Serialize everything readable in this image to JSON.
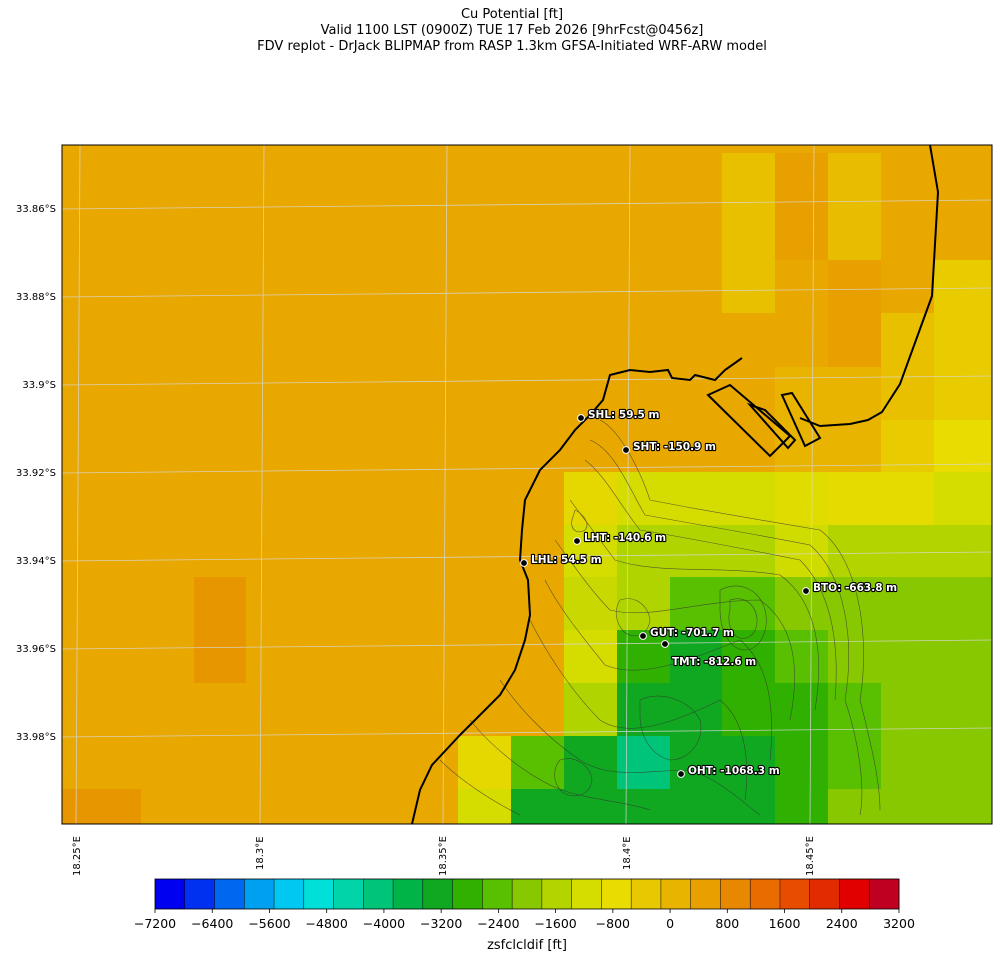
{
  "header": {
    "line1": "Cu Potential [ft]",
    "line2": "Valid 1100 LST (0900Z) TUE 17 Feb 2026 [9hrFcst@0456z]",
    "line3": "FDV replot - DrJack BLIPMAP from RASP 1.3km GFSA-Initiated WRF-ARW model"
  },
  "map": {
    "lat_ticks": [
      "33.86°S",
      "33.88°S",
      "33.9°S",
      "33.92°S",
      "33.94°S",
      "33.96°S",
      "33.98°S"
    ],
    "lon_ticks": [
      "18.25°E",
      "18.3°E",
      "18.35°E",
      "18.4°E",
      "18.45°E"
    ],
    "stations": [
      {
        "code": "SHL",
        "label": "SHL: 59.5 m"
      },
      {
        "code": "SHT",
        "label": "SHT: -150.9 m"
      },
      {
        "code": "LHT",
        "label": "LHT: -140.6 m"
      },
      {
        "code": "LHL",
        "label": "LHL: 54.5 m"
      },
      {
        "code": "BTO",
        "label": "BTO: -663.8 m"
      },
      {
        "code": "GUT",
        "label": "GUT: -701.7 m"
      },
      {
        "code": "TMT",
        "label": "TMT: -812.6 m"
      },
      {
        "code": "OHT",
        "label": "OHT: -1068.3 m"
      }
    ]
  },
  "colorbar": {
    "label": "zsfclcldif [ft]",
    "ticks": [
      "−7200",
      "−6400",
      "−5600",
      "−4800",
      "−4000",
      "−3200",
      "−2400",
      "−1600",
      "−800",
      "0",
      "800",
      "1600",
      "2400",
      "3200"
    ],
    "colors": [
      "#0000f0",
      "#0030f0",
      "#0068f0",
      "#00a0f0",
      "#00c8f0",
      "#00e0d8",
      "#00d4a8",
      "#00c478",
      "#00b448",
      "#10a820",
      "#30b000",
      "#58c000",
      "#88c800",
      "#b4d400",
      "#d4dc00",
      "#e8dc00",
      "#e8c800",
      "#e8b400",
      "#e8a000",
      "#e88800",
      "#e86c00",
      "#e84c00",
      "#e02c00",
      "#e00000",
      "#c00020"
    ]
  }
}
